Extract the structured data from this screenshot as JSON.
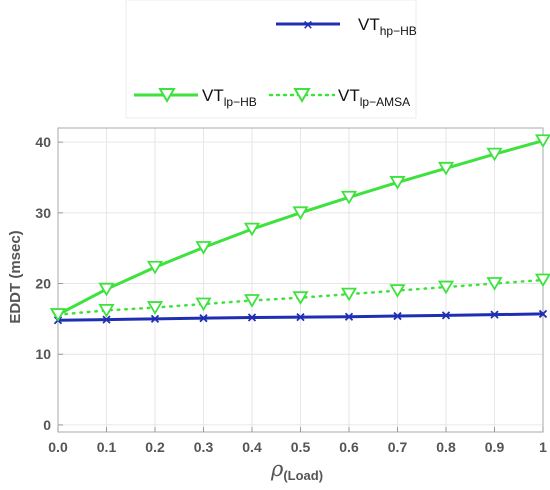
{
  "chart_data": {
    "type": "line",
    "x": [
      0.0,
      0.1,
      0.2,
      0.3,
      0.4,
      0.5,
      0.6,
      0.7,
      0.8,
      0.9,
      1.0
    ],
    "x_tick_labels": [
      "0.0",
      "0.1",
      "0.2",
      "0.3",
      "0.4",
      "0.5",
      "0.6",
      "0.7",
      "0.8",
      "0.9",
      "1"
    ],
    "y_ticks": [
      0,
      10,
      20,
      30,
      40
    ],
    "y_tick_labels": [
      "0",
      "10",
      "20",
      "30",
      "40"
    ],
    "xlim": [
      0,
      1
    ],
    "ylim": [
      -1,
      42
    ],
    "xlabel_main": "ρ",
    "xlabel_sub": "(Load)",
    "ylabel": "EDDT (msec)",
    "grid": true,
    "legend_position": "top",
    "series": [
      {
        "name_main": "VT",
        "name_sub": "hp−HB",
        "color": "#1f2fb3",
        "line_style": "solid",
        "marker": "x",
        "values": [
          14.8,
          14.9,
          15.0,
          15.1,
          15.2,
          15.25,
          15.3,
          15.4,
          15.5,
          15.6,
          15.7
        ]
      },
      {
        "name_main": "VT",
        "name_sub": "lp−HB",
        "color": "#3de23d",
        "line_style": "solid",
        "marker": "triangle-down",
        "values": [
          15.6,
          19.2,
          22.3,
          25.1,
          27.7,
          30.0,
          32.2,
          34.3,
          36.3,
          38.3,
          40.2
        ]
      },
      {
        "name_main": "VT",
        "name_sub": "lp−AMSA",
        "color": "#3de23d",
        "line_style": "dotted",
        "marker": "triangle-down",
        "values": [
          15.6,
          16.2,
          16.6,
          17.1,
          17.6,
          18.0,
          18.5,
          19.0,
          19.5,
          20.0,
          20.5
        ]
      }
    ]
  }
}
